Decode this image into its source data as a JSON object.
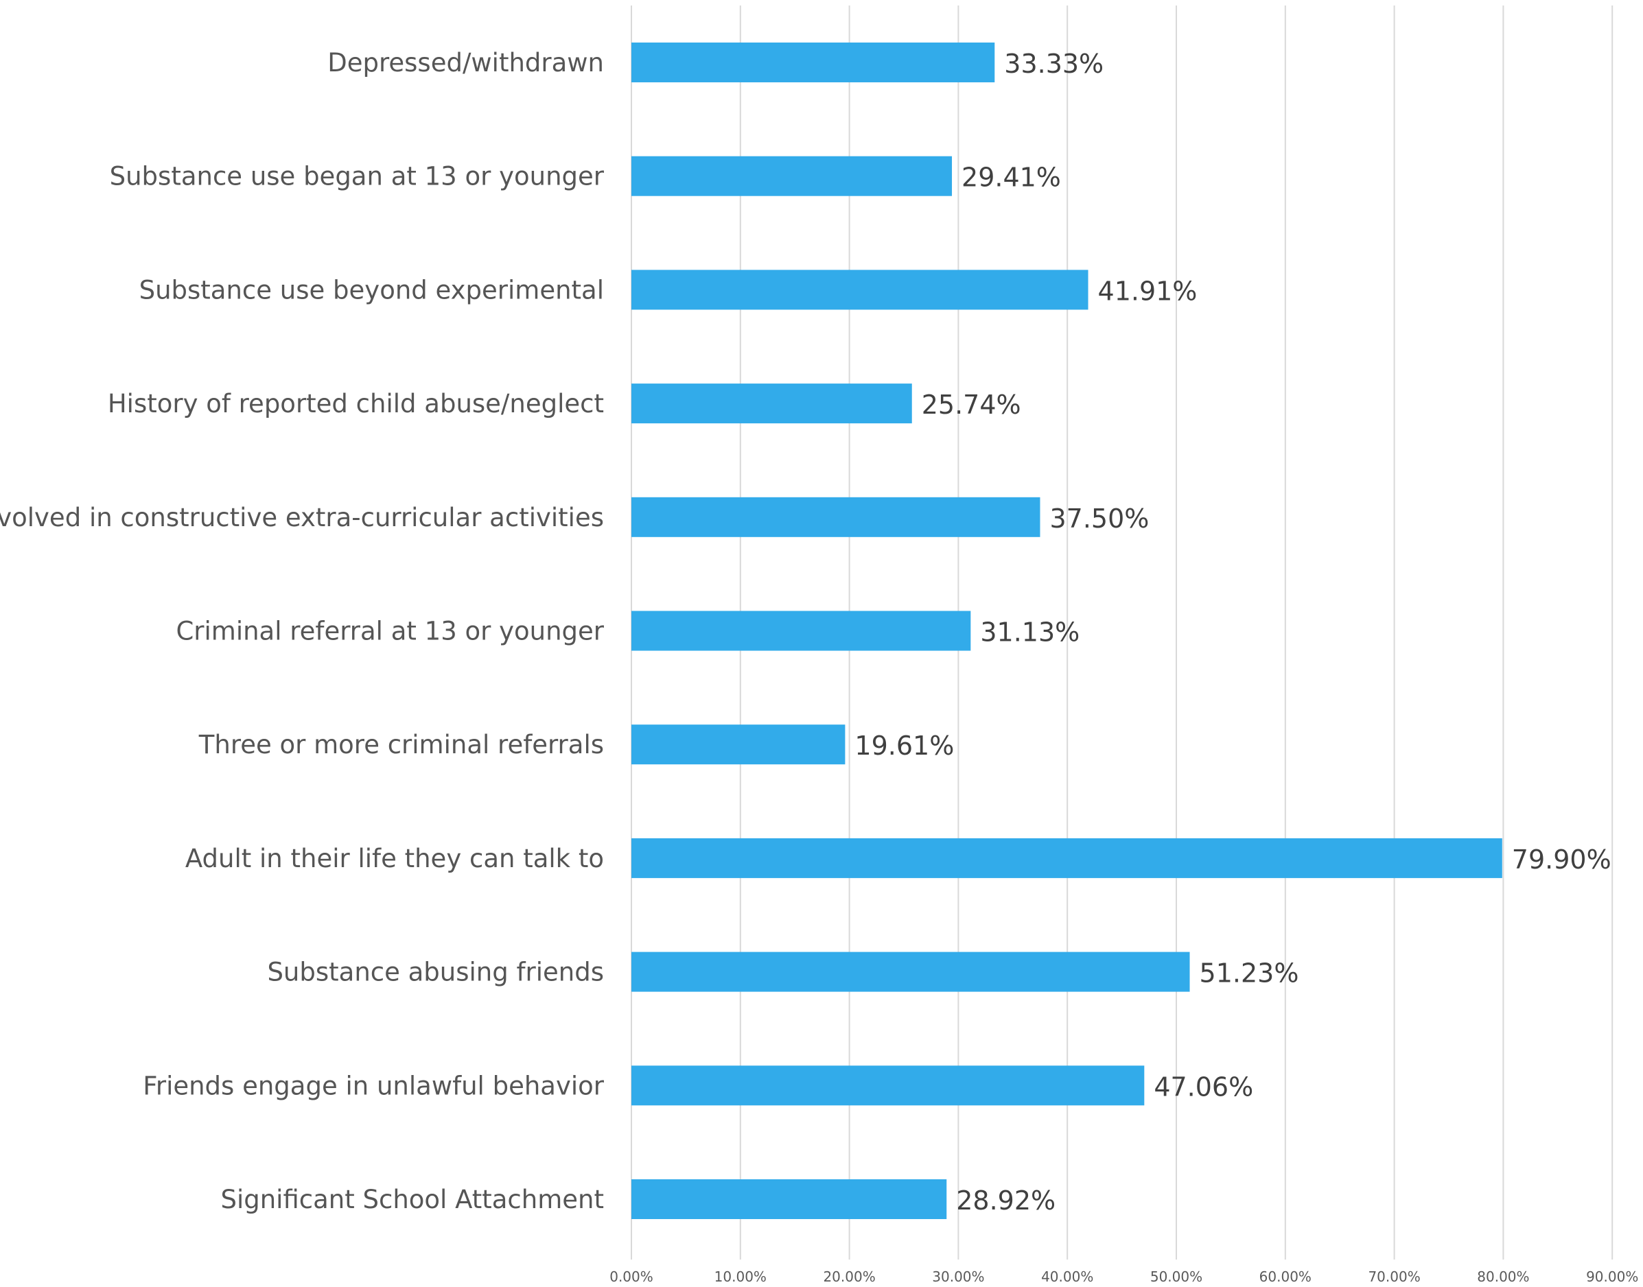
{
  "chart_data": {
    "type": "bar",
    "orientation": "horizontal",
    "categories": [
      "Depressed/withdrawn",
      "Substance use began at 13 or younger",
      "Substance use beyond experimental",
      "History of reported child abuse/neglect",
      "Involved in constructive extra-curricular activities",
      "Criminal referral at 13 or younger",
      "Three or more criminal referrals",
      "Adult in their life they can talk to",
      "Substance abusing friends",
      "Friends engage in unlawful behavior",
      "Significant School Attachment"
    ],
    "values": [
      33.33,
      29.41,
      41.91,
      25.74,
      37.5,
      31.13,
      19.61,
      79.9,
      51.23,
      47.06,
      28.92
    ],
    "value_labels": [
      "33.33%",
      "29.41%",
      "41.91%",
      "25.74%",
      "37.50%",
      "31.13%",
      "19.61%",
      "79.90%",
      "51.23%",
      "47.06%",
      "28.92%"
    ],
    "x_ticks": [
      "0.00%",
      "10.00%",
      "20.00%",
      "30.00%",
      "40.00%",
      "50.00%",
      "60.00%",
      "70.00%",
      "80.00%",
      "90.00%"
    ],
    "xlim": [
      0,
      90
    ],
    "grid": true,
    "legend": "none",
    "bar_color": "#32ABEA",
    "title": "",
    "xlabel": "",
    "ylabel": ""
  }
}
